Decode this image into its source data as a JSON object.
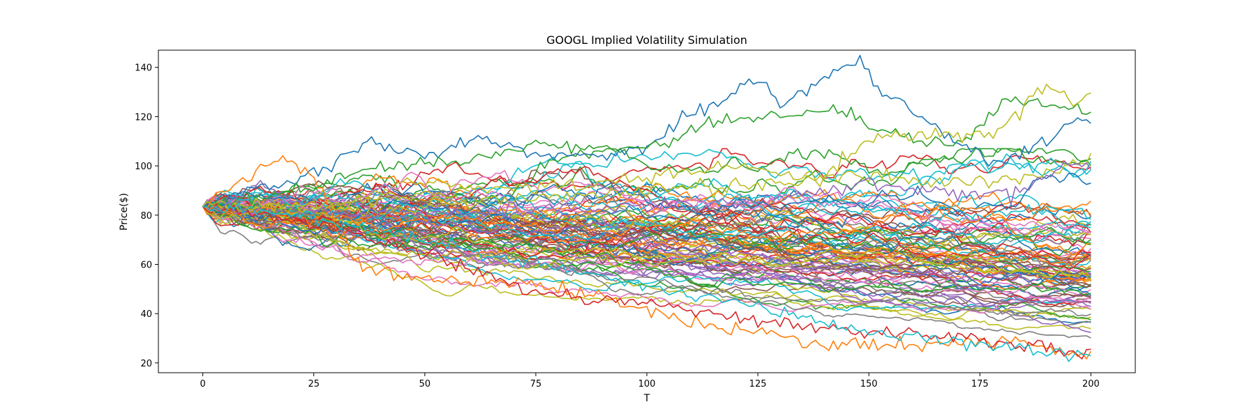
{
  "chart_data": {
    "type": "line",
    "title": "GOOGL Implied Volatility Simulation",
    "xlabel": "T",
    "ylabel": "Price($)",
    "xlim": [
      -10,
      210
    ],
    "ylim": [
      16,
      147
    ],
    "x_ticks": [
      0,
      25,
      50,
      75,
      100,
      125,
      150,
      175,
      200
    ],
    "y_ticks": [
      20,
      40,
      60,
      80,
      100,
      120,
      140
    ],
    "grid": false,
    "legend": "none",
    "palette": [
      "#1f77b4",
      "#ff7f0e",
      "#2ca02c",
      "#d62728",
      "#9467bd",
      "#8c564b",
      "#e377c2",
      "#7f7f7f",
      "#bcbd22",
      "#17becf"
    ],
    "simulation": {
      "start_value": 83.5,
      "steps": 200,
      "paths": 100
    },
    "highlighted_paths": [
      {
        "color": "#1f77b4",
        "anchors": [
          [
            0,
            83.5
          ],
          [
            15,
            92
          ],
          [
            30,
            100
          ],
          [
            37,
            111
          ],
          [
            50,
            104
          ],
          [
            62,
            111
          ],
          [
            75,
            105
          ],
          [
            90,
            104
          ],
          [
            100,
            108
          ],
          [
            110,
            120
          ],
          [
            125,
            135
          ],
          [
            130,
            125
          ],
          [
            142,
            138
          ],
          [
            148,
            142
          ],
          [
            153,
            130
          ],
          [
            160,
            122
          ],
          [
            168,
            113
          ],
          [
            178,
            101
          ],
          [
            190,
            110
          ],
          [
            196,
            118
          ],
          [
            200,
            117
          ]
        ]
      },
      {
        "color": "#2ca02c",
        "anchors": [
          [
            0,
            83.5
          ],
          [
            20,
            90
          ],
          [
            40,
            100
          ],
          [
            60,
            102
          ],
          [
            75,
            109
          ],
          [
            95,
            107
          ],
          [
            105,
            110
          ],
          [
            115,
            118
          ],
          [
            130,
            120
          ],
          [
            145,
            123
          ],
          [
            150,
            116
          ],
          [
            160,
            110
          ],
          [
            170,
            108
          ],
          [
            180,
            126
          ],
          [
            190,
            126
          ],
          [
            200,
            121
          ]
        ]
      },
      {
        "color": "#bcbd22",
        "anchors": [
          [
            0,
            83.5
          ],
          [
            30,
            85
          ],
          [
            60,
            90
          ],
          [
            90,
            93
          ],
          [
            120,
            100
          ],
          [
            140,
            95
          ],
          [
            150,
            110
          ],
          [
            160,
            113
          ],
          [
            172,
            113
          ],
          [
            178,
            112
          ],
          [
            185,
            125
          ],
          [
            190,
            133
          ],
          [
            196,
            126
          ],
          [
            200,
            130
          ]
        ]
      },
      {
        "color": "#bcbd22",
        "anchors": [
          [
            0,
            83.5
          ],
          [
            40,
            82
          ],
          [
            80,
            88
          ],
          [
            120,
            92
          ],
          [
            150,
            96
          ],
          [
            170,
            93
          ],
          [
            185,
            95
          ],
          [
            195,
            100
          ],
          [
            200,
            103
          ]
        ]
      },
      {
        "color": "#9467bd",
        "anchors": [
          [
            0,
            83.5
          ],
          [
            40,
            80
          ],
          [
            80,
            82
          ],
          [
            120,
            85
          ],
          [
            150,
            93
          ],
          [
            170,
            88
          ],
          [
            185,
            90
          ],
          [
            195,
            101
          ],
          [
            200,
            100
          ]
        ]
      },
      {
        "color": "#ff7f0e",
        "anchors": [
          [
            0,
            83.5
          ],
          [
            18,
            104
          ],
          [
            25,
            96
          ],
          [
            35,
            58
          ],
          [
            50,
            54
          ],
          [
            75,
            52
          ],
          [
            95,
            45
          ],
          [
            110,
            36
          ],
          [
            125,
            33
          ],
          [
            140,
            27
          ],
          [
            160,
            27
          ],
          [
            180,
            29
          ],
          [
            200,
            24
          ]
        ]
      },
      {
        "color": "#d62728",
        "anchors": [
          [
            0,
            83.5
          ],
          [
            30,
            75
          ],
          [
            60,
            58
          ],
          [
            80,
            47
          ],
          [
            100,
            45
          ],
          [
            125,
            37
          ],
          [
            150,
            33
          ],
          [
            175,
            29
          ],
          [
            200,
            24
          ]
        ]
      },
      {
        "color": "#17becf",
        "anchors": [
          [
            0,
            83.5
          ],
          [
            30,
            78
          ],
          [
            60,
            66
          ],
          [
            90,
            55
          ],
          [
            120,
            45
          ],
          [
            150,
            32
          ],
          [
            175,
            28
          ],
          [
            200,
            22
          ]
        ]
      }
    ]
  }
}
